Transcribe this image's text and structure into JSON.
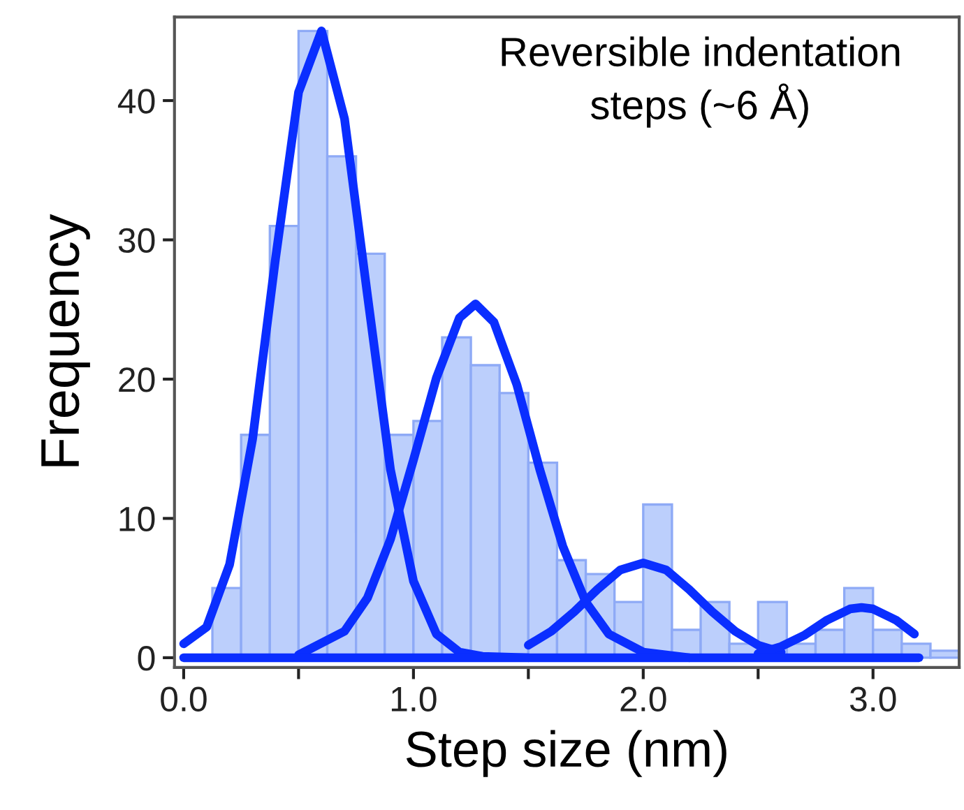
{
  "chart_data": {
    "type": "histogram",
    "xlabel": "Step size (nm)",
    "ylabel": "Frequency",
    "annotations": [
      "Reversible indentation\nsteps (~6 Å)"
    ],
    "bins": [
      0.125,
      0.25,
      0.375,
      0.5,
      0.625,
      0.75,
      0.875,
      1.0,
      1.125,
      1.25,
      1.375,
      1.5,
      1.625,
      1.75,
      1.875,
      2.0,
      2.125,
      2.25,
      2.375,
      2.5,
      2.625,
      2.75,
      2.875,
      3.0,
      3.125,
      3.25,
      3.375
    ],
    "values": [
      5,
      16,
      31,
      45,
      36,
      29,
      16,
      17,
      23,
      21,
      19,
      14,
      7,
      6,
      4,
      11,
      2,
      4,
      1,
      4,
      1,
      2,
      5,
      2,
      1,
      0.5
    ],
    "color": "#bccffc",
    "series": [
      {
        "type": "line",
        "color": "#0a2eff",
        "x": [
          0,
          0.1,
          0.2,
          0.3,
          0.4,
          0.5,
          0.6,
          0.7,
          0.8,
          0.9,
          1.0,
          1.1,
          1.2,
          1.3,
          1.5
        ],
        "values": [
          1,
          2.2,
          6.7,
          15.7,
          28.7,
          40.6,
          45,
          38.7,
          26,
          13.5,
          5.5,
          1.7,
          0.4,
          0.1,
          0
        ]
      },
      {
        "type": "line",
        "color": "#0a2eff",
        "x": [
          0.5,
          0.7,
          0.8,
          0.9,
          1.0,
          1.1,
          1.2,
          1.27,
          1.35,
          1.45,
          1.55,
          1.65,
          1.75,
          1.85,
          2.0,
          2.2
        ],
        "values": [
          0.2,
          1.9,
          4.3,
          8.5,
          14.2,
          20.1,
          24.4,
          25.4,
          24.1,
          19.6,
          13.5,
          8,
          4,
          1.7,
          0.4,
          0
        ]
      },
      {
        "type": "line",
        "color": "#0a2eff",
        "x": [
          1.5,
          1.6,
          1.7,
          1.8,
          1.9,
          2.0,
          2.1,
          2.2,
          2.3,
          2.4,
          2.5,
          2.6
        ],
        "values": [
          0.9,
          1.9,
          3.3,
          4.9,
          6.3,
          6.8,
          6.3,
          4.9,
          3.3,
          1.9,
          0.9,
          0.4
        ]
      },
      {
        "type": "line",
        "color": "#0a2eff",
        "x": [
          2.5,
          2.6,
          2.7,
          2.8,
          2.9,
          2.95,
          3.0,
          3.1,
          3.18
        ],
        "values": [
          0.3,
          0.8,
          1.6,
          2.7,
          3.5,
          3.6,
          3.5,
          2.7,
          1.7
        ]
      },
      {
        "type": "line",
        "color": "#0a2eff",
        "x": [
          0,
          3.2
        ],
        "values": [
          0,
          0
        ]
      }
    ],
    "xlim": [
      -0.04,
      3.375
    ],
    "ylim": [
      -0.7,
      46
    ],
    "xticks": [
      {
        "value": 0,
        "label": "0.0"
      },
      {
        "value": 0.5,
        "label": null
      },
      {
        "value": 1,
        "label": "1.0"
      },
      {
        "value": 1.5,
        "label": null
      },
      {
        "value": 2,
        "label": "2.0"
      },
      {
        "value": 2.5,
        "label": null
      },
      {
        "value": 3,
        "label": "3.0"
      }
    ],
    "yticks": [
      0,
      10,
      20,
      30,
      40
    ],
    "grid": false,
    "legend": false
  }
}
